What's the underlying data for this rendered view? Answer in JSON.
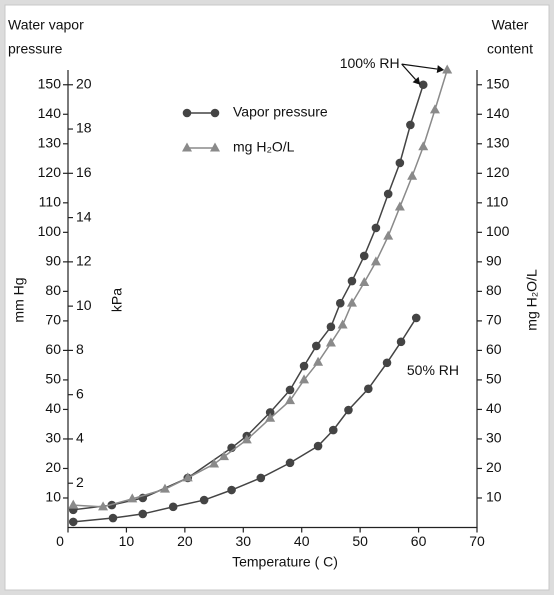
{
  "chart_data": {
    "type": "line",
    "title_left": [
      "Water vapor",
      "pressure"
    ],
    "title_right": [
      "Water",
      "content"
    ],
    "xlabel": "Temperature ( C)",
    "ylabel": "mm Hg",
    "y2label": "mg H₂O/L",
    "xlim": [
      0,
      70
    ],
    "xticks": [
      0,
      10,
      20,
      30,
      40,
      50,
      60,
      70
    ],
    "ylim": [
      0,
      155
    ],
    "yticks": [
      10,
      20,
      30,
      40,
      50,
      60,
      70,
      80,
      90,
      100,
      110,
      120,
      130,
      140,
      150
    ],
    "y2lim": [
      0,
      155
    ],
    "y2ticks": [
      10,
      20,
      30,
      40,
      50,
      60,
      70,
      80,
      90,
      100,
      110,
      120,
      130,
      140,
      150
    ],
    "kpa_axis": {
      "label": "kPa",
      "lim": [
        0,
        20.667
      ],
      "ticks": [
        2,
        4,
        6,
        8,
        10,
        12,
        14,
        16,
        18,
        20
      ]
    },
    "series": [
      {
        "name": "Vapor pressure",
        "color": "#444444",
        "marker": "circle",
        "x": [
          0.9,
          7.5,
          12.8,
          20.5,
          28,
          30.6,
          34.6,
          38,
          40.4,
          42.5,
          45,
          46.6,
          48.6,
          50.7,
          52.7,
          54.8,
          56.8,
          58.6,
          60.8
        ],
        "values": [
          6,
          7.6,
          10,
          16.8,
          27,
          31,
          39,
          46.6,
          54.7,
          61.5,
          68,
          76,
          83.5,
          92,
          101.5,
          113,
          123.5,
          136.4,
          150
        ]
      },
      {
        "name": "mg H₂O/L",
        "color": "#8a8a8a",
        "marker": "triangle",
        "axis": "y2",
        "x": [
          0.9,
          6,
          11,
          16.6,
          20.5,
          25,
          26.7,
          30.6,
          34.6,
          38,
          40.4,
          42.8,
          45,
          47,
          48.6,
          50.7,
          52.7,
          54.8,
          56.8,
          58.9,
          60.8,
          62.8,
          64.9
        ],
        "values": [
          7.6,
          7,
          9.7,
          13,
          16.8,
          21.5,
          24,
          29.7,
          37,
          43,
          50,
          56,
          62.5,
          68.6,
          76,
          83,
          90,
          98.7,
          108.6,
          119,
          129,
          141.5,
          155
        ]
      },
      {
        "color": "#444444",
        "marker": "circle",
        "x": [
          0.9,
          7.7,
          12.8,
          18,
          23.3,
          28,
          33,
          38,
          42.8,
          45.4,
          48,
          51.4,
          54.6,
          57,
          59.6
        ],
        "values": [
          1.9,
          3.2,
          4.6,
          7,
          9.3,
          12.7,
          16.8,
          21.9,
          27.6,
          33,
          39.8,
          47,
          55.8,
          62.9,
          71
        ]
      }
    ],
    "annotations": [
      {
        "text": "100% RH",
        "x": 46.5,
        "y": 157
      },
      {
        "text": "50% RH",
        "x": 58,
        "y": 53
      }
    ]
  }
}
